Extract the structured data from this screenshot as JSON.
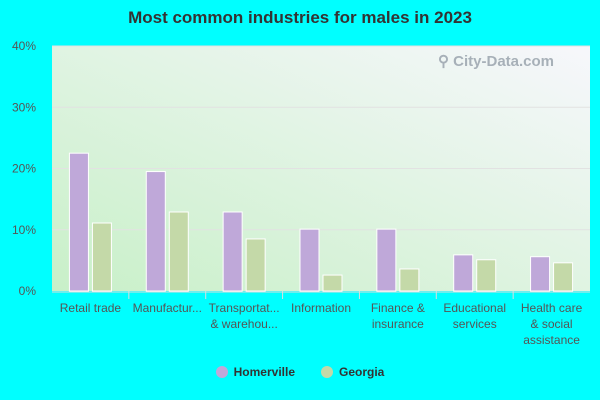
{
  "chart_data": {
    "type": "bar",
    "title": "Most common industries for males in 2023",
    "categories": [
      [
        "Retail trade"
      ],
      [
        "Manufactur..."
      ],
      [
        "Transportat...",
        "& warehou..."
      ],
      [
        "Information"
      ],
      [
        "Finance &",
        "insurance"
      ],
      [
        "Educational",
        "services"
      ],
      [
        "Health care",
        "& social",
        "assistance"
      ]
    ],
    "series": [
      {
        "name": "Homerville",
        "color": "#bfa8d9",
        "values": [
          22.5,
          19.5,
          12.9,
          10.1,
          10.1,
          5.9,
          5.6
        ]
      },
      {
        "name": "Georgia",
        "color": "#c4d9a8",
        "values": [
          11.1,
          12.9,
          8.5,
          2.6,
          3.6,
          5.1,
          4.6
        ]
      }
    ],
    "ylim": [
      0,
      40
    ],
    "yticks": [
      "0%",
      "10%",
      "20%",
      "30%",
      "40%"
    ],
    "grid": true,
    "legend_placement": "bottom",
    "watermark": "City-Data.com"
  }
}
